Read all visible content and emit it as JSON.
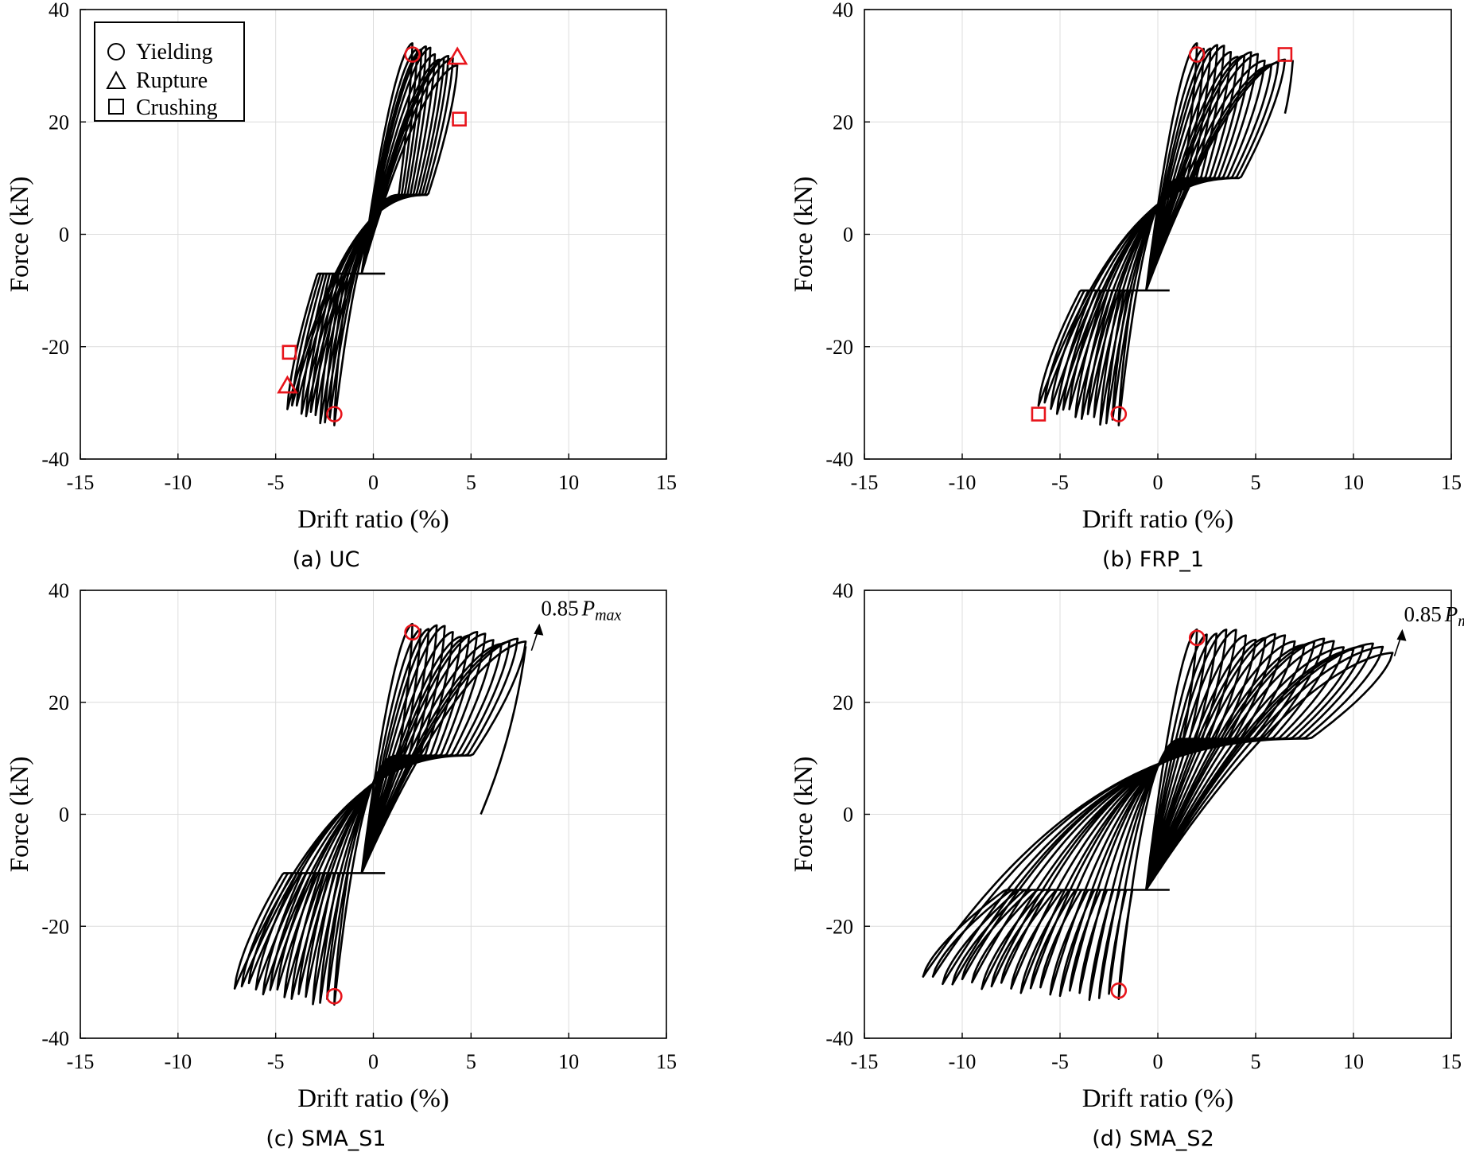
{
  "axis_labels": {
    "xlabel": "Drift ratio (%)",
    "ylabel": "Force (kN)"
  },
  "legend": {
    "yielding": "Yielding",
    "rupture": "Rupture",
    "crushing": "Crushing"
  },
  "annotation": {
    "prefix": "0.85",
    "symbol": "P",
    "subscript": "max"
  },
  "colors": {
    "curve": "#000000",
    "marker": "#e8141b",
    "grid": "#dcdcdc"
  },
  "chart_data": [
    {
      "type": "line",
      "caption": "(a) UC",
      "xlim": [
        -15,
        15
      ],
      "ylim": [
        -40,
        40
      ],
      "xticks": [
        -15,
        -10,
        -5,
        0,
        5,
        10,
        15
      ],
      "yticks": [
        -40,
        -20,
        0,
        20,
        40
      ],
      "series": [
        {
          "name": "hysteresis",
          "cycles": 11,
          "max_drift_pos": 4.3,
          "max_drift_neg": -4.4,
          "peak_force_pos": 34,
          "peak_force_neg": -34,
          "pinch_force": 7
        }
      ],
      "markers": [
        {
          "kind": "yielding",
          "x": 2.0,
          "y": 32
        },
        {
          "kind": "yielding",
          "x": -2.0,
          "y": -32
        },
        {
          "kind": "rupture",
          "x": 4.3,
          "y": 31.5
        },
        {
          "kind": "rupture",
          "x": -4.4,
          "y": -27
        },
        {
          "kind": "crushing",
          "x": 4.4,
          "y": 20.5
        },
        {
          "kind": "crushing",
          "x": -4.3,
          "y": -21
        }
      ],
      "has_legend": true
    },
    {
      "type": "line",
      "caption": "(b) FRP_1",
      "xlim": [
        -15,
        15
      ],
      "ylim": [
        -40,
        40
      ],
      "xticks": [
        -15,
        -10,
        -5,
        0,
        5,
        10,
        15
      ],
      "yticks": [
        -40,
        -20,
        0,
        20,
        40
      ],
      "series": [
        {
          "name": "hysteresis",
          "cycles": 14,
          "max_drift_pos": 6.5,
          "max_drift_neg": -6.1,
          "peak_force_pos": 34,
          "peak_force_neg": -34,
          "pinch_force": 10
        }
      ],
      "markers": [
        {
          "kind": "yielding",
          "x": 2.0,
          "y": 32
        },
        {
          "kind": "yielding",
          "x": -2.0,
          "y": -32
        },
        {
          "kind": "crushing",
          "x": 6.5,
          "y": 32
        },
        {
          "kind": "crushing",
          "x": -6.1,
          "y": -32
        }
      ],
      "has_legend": false
    },
    {
      "type": "line",
      "caption": "(c) SMA_S1",
      "xlim": [
        -15,
        15
      ],
      "ylim": [
        -40,
        40
      ],
      "xticks": [
        -15,
        -10,
        -5,
        0,
        5,
        10,
        15
      ],
      "yticks": [
        -40,
        -20,
        0,
        20,
        40
      ],
      "series": [
        {
          "name": "hysteresis",
          "cycles": 15,
          "max_drift_pos": 7.8,
          "max_drift_neg": -7.1,
          "peak_force_pos": 34,
          "peak_force_neg": -34,
          "pinch_force": 10.5
        }
      ],
      "markers": [
        {
          "kind": "yielding",
          "x": 2.0,
          "y": 32.5
        },
        {
          "kind": "yielding",
          "x": -2.0,
          "y": -32.5
        }
      ],
      "annotation_point": {
        "x": 8.5,
        "y": 33.5
      },
      "has_legend": false
    },
    {
      "type": "line",
      "caption": "(d) SMA_S2",
      "xlim": [
        -15,
        15
      ],
      "ylim": [
        -40,
        40
      ],
      "xticks": [
        -15,
        -10,
        -5,
        0,
        5,
        10,
        15
      ],
      "yticks": [
        -40,
        -20,
        0,
        20,
        40
      ],
      "series": [
        {
          "name": "hysteresis",
          "cycles": 21,
          "max_drift_pos": 12.0,
          "max_drift_neg": -12.0,
          "peak_force_pos": 33,
          "peak_force_neg": -33,
          "pinch_force": 13.5
        }
      ],
      "markers": [
        {
          "kind": "yielding",
          "x": 2.0,
          "y": 31.5
        },
        {
          "kind": "yielding",
          "x": -2.0,
          "y": -31.5
        }
      ],
      "annotation_point": {
        "x": 12.5,
        "y": 32.5
      },
      "has_legend": false
    }
  ]
}
